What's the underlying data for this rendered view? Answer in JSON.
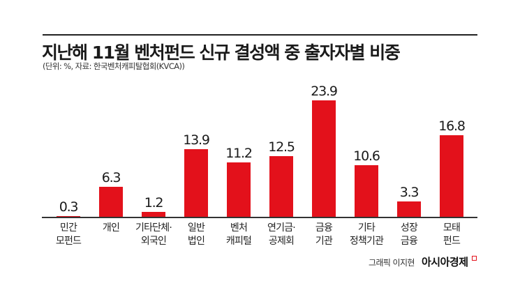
{
  "header": {
    "title": "지난해 11월 벤처펀드 신규 결성액 중 출자자별 비중",
    "subtitle": "(단위: %, 자료: 한국벤처캐피탈협회(KVCA))"
  },
  "footer": {
    "credit": "그래픽 이지현",
    "brand": "아시아경제"
  },
  "colors": {
    "bar": "#e3111b",
    "text": "#1a1a1a",
    "axis": "#333333"
  },
  "chart_data": {
    "type": "bar",
    "title": "지난해 11월 벤처펀드 신규 결성액 중 출자자별 비중",
    "subtitle": "(단위: %, 자료: 한국벤처캐피탈협회(KVCA))",
    "xlabel": "",
    "ylabel": "%",
    "ylim": [
      0,
      25
    ],
    "grid": false,
    "legend": null,
    "categories": [
      [
        "민간",
        "모펀드"
      ],
      [
        "개인"
      ],
      [
        "기타단체·",
        "외국인"
      ],
      [
        "일반",
        "법인"
      ],
      [
        "벤처",
        "캐피털"
      ],
      [
        "연기금·",
        "공제회"
      ],
      [
        "금융",
        "기관"
      ],
      [
        "기타",
        "정책기관"
      ],
      [
        "성장",
        "금융"
      ],
      [
        "모태",
        "펀드"
      ]
    ],
    "values": [
      0.3,
      6.3,
      1.2,
      13.9,
      11.2,
      12.5,
      23.9,
      10.6,
      3.3,
      16.8
    ],
    "labels": [
      "0.3",
      "6.3",
      "1.2",
      "13.9",
      "11.2",
      "12.5",
      "23.9",
      "10.6",
      "3.3",
      "16.8"
    ]
  }
}
